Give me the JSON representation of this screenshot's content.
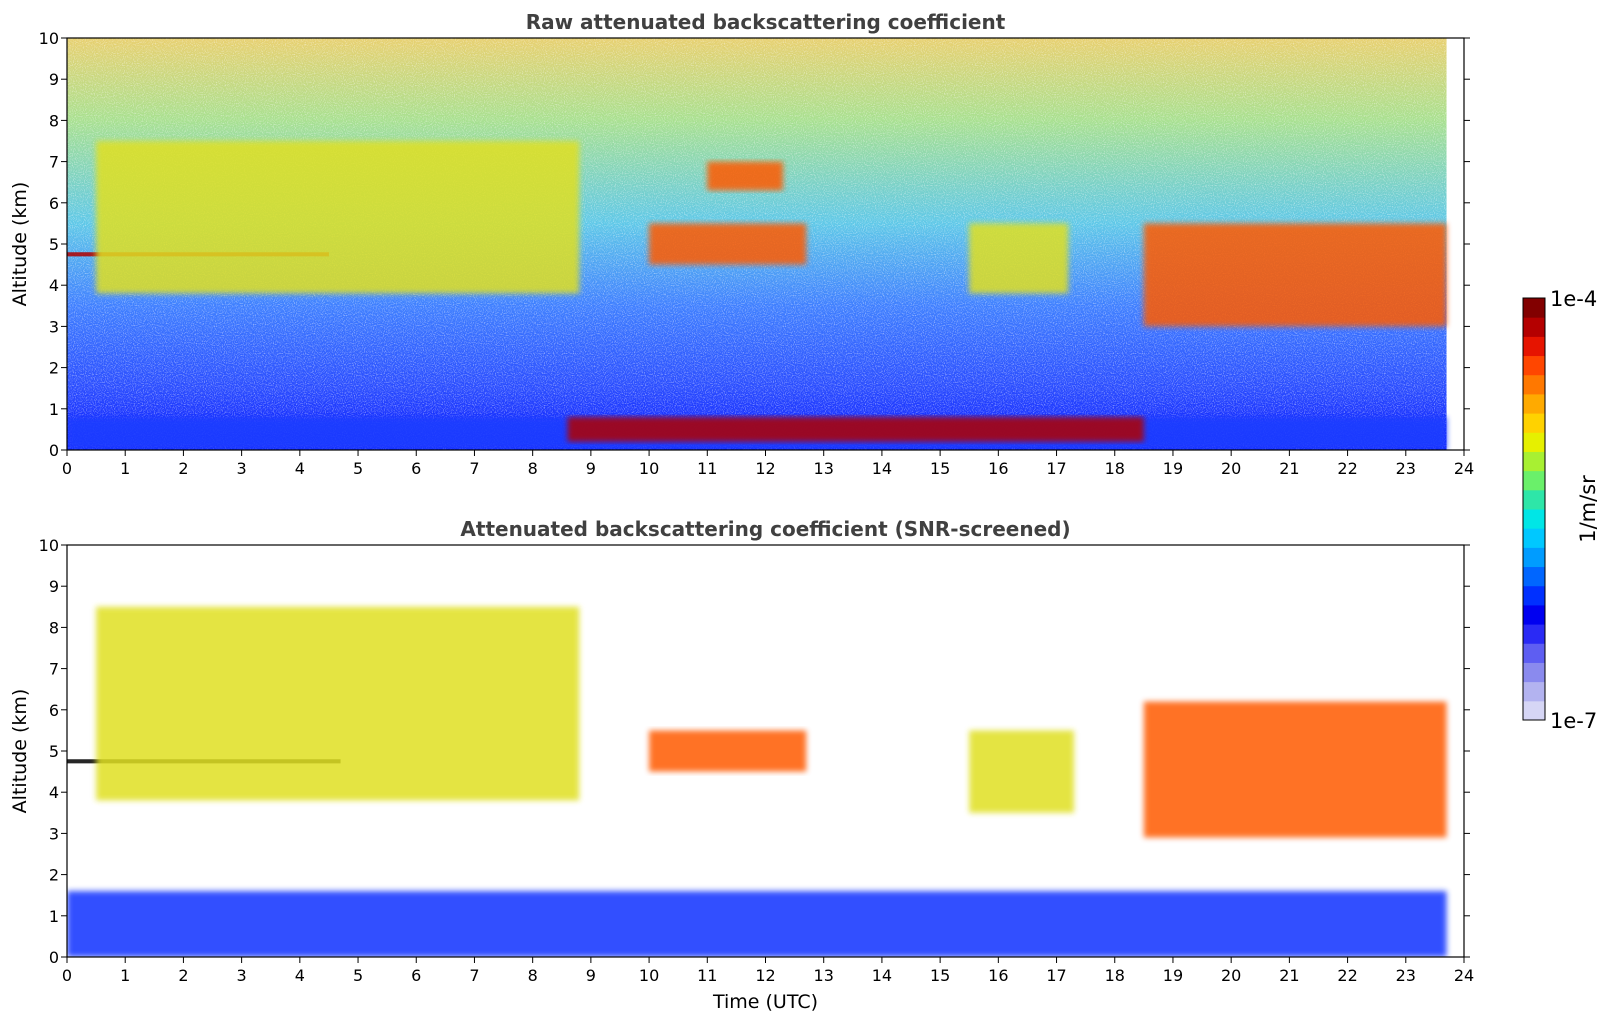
{
  "figure": {
    "colorbar": {
      "max_label": "1e-4",
      "min_label": "1e-7",
      "unit_label": "1/m/sr",
      "colors": [
        "#d6d6f5",
        "#b3b3f0",
        "#8a8aee",
        "#5e5ef2",
        "#2a2af5",
        "#0000f0",
        "#0030ff",
        "#0066ff",
        "#009cff",
        "#00c8ff",
        "#00e6e6",
        "#2ee6a8",
        "#6af06a",
        "#a8f032",
        "#e6f000",
        "#ffd200",
        "#ffaa00",
        "#ff7800",
        "#ff4600",
        "#e61400",
        "#b40000",
        "#820000"
      ]
    }
  },
  "chart_data": [
    {
      "type": "heatmap",
      "title": "Raw attenuated backscattering coefficient",
      "xlabel": "",
      "ylabel": "Altitude (km)",
      "xlim": [
        0,
        24
      ],
      "ylim": [
        0,
        10
      ],
      "xticks": [
        "0",
        "1",
        "2",
        "3",
        "4",
        "5",
        "6",
        "7",
        "8",
        "9",
        "10",
        "11",
        "12",
        "13",
        "14",
        "15",
        "16",
        "17",
        "18",
        "19",
        "20",
        "21",
        "22",
        "23",
        "24"
      ],
      "yticks": [
        "0",
        "1",
        "2",
        "3",
        "4",
        "5",
        "6",
        "7",
        "8",
        "9",
        "10"
      ],
      "color_scale": "log",
      "zlim": [
        1e-07,
        0.0001
      ],
      "data_end_time": 23.7,
      "features": [
        {
          "name": "boundary layer",
          "t": [
            0,
            23.7
          ],
          "alt": [
            0,
            0.8
          ],
          "level": "low"
        },
        {
          "name": "cloud layer",
          "t": [
            0,
            4.5
          ],
          "alt": [
            4.7,
            4.8
          ],
          "level": "max"
        },
        {
          "name": "cirrus",
          "t": [
            0.5,
            8.8
          ],
          "alt": [
            3.8,
            7.5
          ],
          "level": "medium-high"
        },
        {
          "name": "cloud layer",
          "t": [
            10,
            12.7
          ],
          "alt": [
            4.5,
            5.5
          ],
          "level": "high"
        },
        {
          "name": "cloud patches",
          "t": [
            11,
            12.3
          ],
          "alt": [
            6.3,
            7
          ],
          "level": "high"
        },
        {
          "name": "cirrus",
          "t": [
            15.5,
            17.2
          ],
          "alt": [
            3.8,
            5.5
          ],
          "level": "medium-high"
        },
        {
          "name": "cirrus",
          "t": [
            18.5,
            23.7
          ],
          "alt": [
            3,
            5.5
          ],
          "level": "high"
        },
        {
          "name": "low cloud top",
          "t": [
            8.6,
            18.5
          ],
          "alt": [
            0.2,
            0.8
          ],
          "level": "max"
        }
      ]
    },
    {
      "type": "heatmap",
      "title": "Attenuated backscattering coefficient (SNR-screened)",
      "xlabel": "Time (UTC)",
      "ylabel": "Altitude (km)",
      "xlim": [
        0,
        24
      ],
      "ylim": [
        0,
        10
      ],
      "xticks": [
        "0",
        "1",
        "2",
        "3",
        "4",
        "5",
        "6",
        "7",
        "8",
        "9",
        "10",
        "11",
        "12",
        "13",
        "14",
        "15",
        "16",
        "17",
        "18",
        "19",
        "20",
        "21",
        "22",
        "23",
        "24"
      ],
      "yticks": [
        "0",
        "1",
        "2",
        "3",
        "4",
        "5",
        "6",
        "7",
        "8",
        "9",
        "10"
      ],
      "color_scale": "log",
      "zlim": [
        1e-07,
        0.0001
      ],
      "data_end_time": 23.7,
      "features": [
        {
          "name": "boundary layer",
          "t": [
            0,
            23.7
          ],
          "alt": [
            0,
            1.6
          ],
          "level": "low"
        },
        {
          "name": "cloud layer",
          "t": [
            0,
            4.7
          ],
          "alt": [
            4.7,
            4.8
          ],
          "level": "saturated"
        },
        {
          "name": "cirrus",
          "t": [
            0.5,
            8.8
          ],
          "alt": [
            3.8,
            8.5
          ],
          "level": "medium-high"
        },
        {
          "name": "cloud layer",
          "t": [
            10,
            12.7
          ],
          "alt": [
            4.5,
            5.5
          ],
          "level": "high"
        },
        {
          "name": "cirrus",
          "t": [
            15.5,
            17.3
          ],
          "alt": [
            3.5,
            5.5
          ],
          "level": "medium-high"
        },
        {
          "name": "cirrus",
          "t": [
            18.5,
            23.7
          ],
          "alt": [
            2.9,
            6.2
          ],
          "level": "high"
        }
      ]
    }
  ]
}
